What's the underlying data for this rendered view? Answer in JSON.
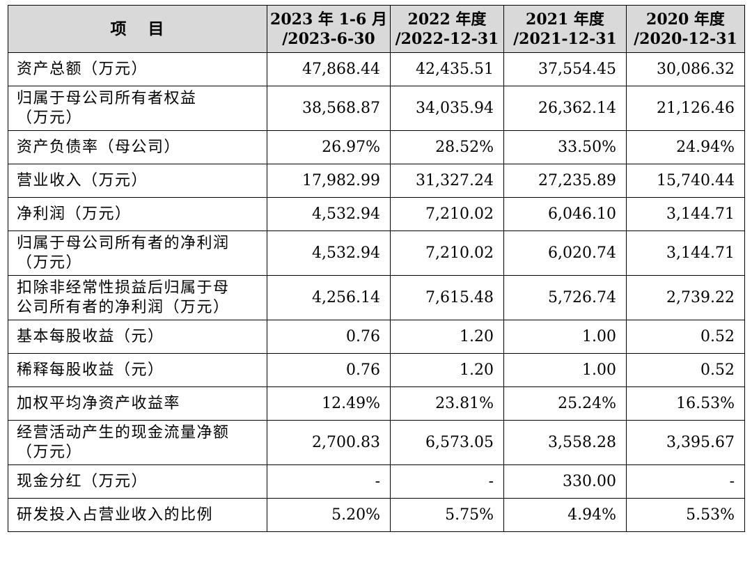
{
  "table": {
    "header": {
      "item_a": "项",
      "item_b": "目",
      "columns": [
        {
          "line1": "2023 年 1-6 月",
          "line2": "/2023-6-30"
        },
        {
          "line1": "2022 年度",
          "line2": "/2022-12-31"
        },
        {
          "line1": "2021 年度",
          "line2": "/2021-12-31"
        },
        {
          "line1": "2020 年度",
          "line2": "/2020-12-31"
        }
      ]
    },
    "rows": [
      {
        "label1": "资产总额（万元）",
        "values": [
          "47,868.44",
          "42,435.51",
          "37,554.45",
          "30,086.32"
        ]
      },
      {
        "label1": "归属于母公司所有者权益",
        "label2": "（万元）",
        "values": [
          "38,568.87",
          "34,035.94",
          "26,362.14",
          "21,126.46"
        ]
      },
      {
        "label1": "资产负债率（母公司）",
        "values": [
          "26.97%",
          "28.52%",
          "33.50%",
          "24.94%"
        ]
      },
      {
        "label1": "营业收入（万元）",
        "values": [
          "17,982.99",
          "31,327.24",
          "27,235.89",
          "15,740.44"
        ]
      },
      {
        "label1": "净利润（万元）",
        "values": [
          "4,532.94",
          "7,210.02",
          "6,046.10",
          "3,144.71"
        ]
      },
      {
        "label1": "归属于母公司所有者的净利润",
        "label2": "（万元）",
        "values": [
          "4,532.94",
          "7,210.02",
          "6,020.74",
          "3,144.71"
        ]
      },
      {
        "label1": "扣除非经常性损益后归属于母",
        "label2": "公司所有者的净利润（万元）",
        "values": [
          "4,256.14",
          "7,615.48",
          "5,726.74",
          "2,739.22"
        ]
      },
      {
        "label1": "基本每股收益（元）",
        "values": [
          "0.76",
          "1.20",
          "1.00",
          "0.52"
        ]
      },
      {
        "label1": "稀释每股收益（元）",
        "values": [
          "0.76",
          "1.20",
          "1.00",
          "0.52"
        ]
      },
      {
        "label1": "加权平均净资产收益率",
        "values": [
          "12.49%",
          "23.81%",
          "25.24%",
          "16.53%"
        ]
      },
      {
        "label1": "经营活动产生的现金流量净额",
        "label2": "（万元）",
        "values": [
          "2,700.83",
          "6,573.05",
          "3,558.28",
          "3,395.67"
        ]
      },
      {
        "label1": "现金分红（万元）",
        "values": [
          "-",
          "-",
          "330.00",
          "-"
        ]
      },
      {
        "label1": "研发投入占营业收入的比例",
        "values": [
          "5.20%",
          "5.75%",
          "4.94%",
          "5.53%"
        ]
      }
    ]
  }
}
